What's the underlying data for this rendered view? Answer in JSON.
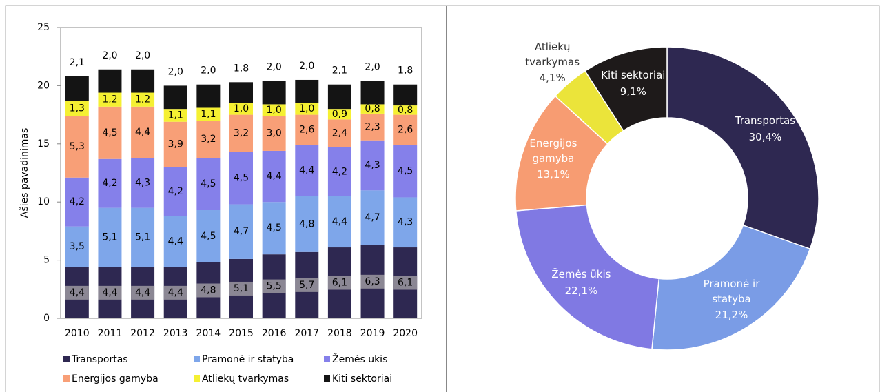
{
  "chart_data": [
    {
      "type": "bar",
      "stacked": true,
      "y_label": "Ašies pavadinimas",
      "categories": [
        "2010",
        "2011",
        "2012",
        "2013",
        "2014",
        "2015",
        "2016",
        "2017",
        "2018",
        "2019",
        "2020"
      ],
      "ylim": [
        0,
        25
      ],
      "yticks": [
        0,
        5,
        10,
        15,
        20,
        25
      ],
      "legend": "bottom",
      "series": [
        {
          "name": "Transportas",
          "color": "#2e2851",
          "values": [
            4.4,
            4.4,
            4.4,
            4.4,
            4.8,
            5.1,
            5.5,
            5.7,
            6.1,
            6.3,
            6.1
          ],
          "value_labels": [
            "4,4",
            "4,4",
            "4,4",
            "4,4",
            "4,8",
            "5,1",
            "5,5",
            "5,7",
            "6,1",
            "6,3",
            "6,1"
          ]
        },
        {
          "name": "Pramonė ir statyba",
          "color": "#7ea6ea",
          "values": [
            3.5,
            5.1,
            5.1,
            4.4,
            4.5,
            4.7,
            4.5,
            4.8,
            4.4,
            4.7,
            4.3
          ],
          "value_labels": [
            "3,5",
            "5,1",
            "5,1",
            "4,4",
            "4,5",
            "4,7",
            "4,5",
            "4,8",
            "4,4",
            "4,7",
            "4,3"
          ]
        },
        {
          "name": "Žemės ūkis",
          "color": "#8580ea",
          "values": [
            4.2,
            4.2,
            4.3,
            4.2,
            4.5,
            4.5,
            4.4,
            4.4,
            4.2,
            4.3,
            4.5
          ],
          "value_labels": [
            "4,2",
            "4,2",
            "4,3",
            "4,2",
            "4,5",
            "4,5",
            "4,4",
            "4,4",
            "4,2",
            "4,3",
            "4,5"
          ]
        },
        {
          "name": "Energijos gamyba",
          "color": "#f89f77",
          "values": [
            5.3,
            4.5,
            4.4,
            3.9,
            3.2,
            3.2,
            3.0,
            2.6,
            2.4,
            2.3,
            2.6
          ],
          "value_labels": [
            "5,3",
            "4,5",
            "4,4",
            "3,9",
            "3,2",
            "3,2",
            "3,0",
            "2,6",
            "2,4",
            "2,3",
            "2,6"
          ]
        },
        {
          "name": "Atliekų tvarkymas",
          "color": "#f5f032",
          "values": [
            1.3,
            1.2,
            1.2,
            1.1,
            1.1,
            1.0,
            1.0,
            1.0,
            0.9,
            0.8,
            0.8
          ],
          "value_labels": [
            "1,3",
            "1,2",
            "1,2",
            "1,1",
            "1,1",
            "1,0",
            "1,0",
            "1,0",
            "0,9",
            "0,8",
            "0,8"
          ]
        },
        {
          "name": "Kiti sektoriai",
          "color": "#141414",
          "values": [
            2.1,
            2.0,
            2.0,
            2.0,
            2.0,
            1.8,
            2.0,
            2.0,
            2.1,
            2.0,
            1.8
          ],
          "value_labels": [
            "2,1",
            "2,0",
            "2,0",
            "2,0",
            "2,0",
            "1,8",
            "2,0",
            "2,0",
            "2,1",
            "2,0",
            "1,8"
          ]
        }
      ]
    },
    {
      "type": "donut",
      "categories": [
        "Transportas",
        "Pramonė ir statyba",
        "Žemės ūkis",
        "Energijos gamyba",
        "Atliekų tvarkymas",
        "Kiti sektoriai"
      ],
      "values": [
        30.4,
        21.2,
        22.1,
        13.1,
        4.1,
        9.1
      ],
      "value_labels": [
        "30,4%",
        "21,2%",
        "22,1%",
        "13,1%",
        "4,1%",
        "9,1%"
      ],
      "colors": [
        "#2e2851",
        "#7a9ce6",
        "#8079e3",
        "#f79c72",
        "#ebe43a",
        "#1e1a1a"
      ]
    }
  ]
}
